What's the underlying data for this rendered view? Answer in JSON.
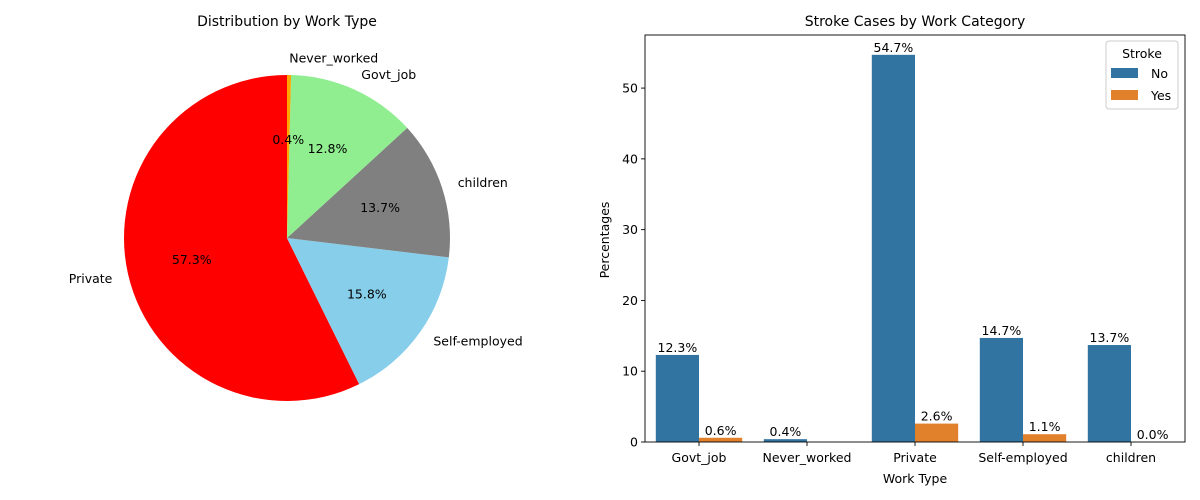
{
  "chart_data": [
    {
      "type": "pie",
      "title": "Distribution by Work Type",
      "categories": [
        "Private",
        "Self-employed",
        "children",
        "Govt_job",
        "Never_worked"
      ],
      "values": [
        57.3,
        15.8,
        13.7,
        12.8,
        0.4
      ],
      "value_labels": [
        "57.3%",
        "15.8%",
        "13.7%",
        "12.8%",
        "0.4%"
      ],
      "colors": [
        "#ff0000",
        "#87ceeb",
        "#808080",
        "#90ee90",
        "#ffa500"
      ],
      "start_angle_deg": 90,
      "direction": "counterclockwise"
    },
    {
      "type": "bar",
      "title": "Stroke Cases by Work Category",
      "xlabel": "Work Type",
      "ylabel": "Percentages",
      "categories": [
        "Govt_job",
        "Never_worked",
        "Private",
        "Self-employed",
        "children"
      ],
      "series": [
        {
          "name": "No",
          "color": "#3274a1",
          "values": [
            12.3,
            0.4,
            54.7,
            14.7,
            13.7
          ],
          "value_labels": [
            "12.3%",
            "0.4%",
            "54.7%",
            "14.7%",
            "13.7%"
          ]
        },
        {
          "name": "Yes",
          "color": "#e1812c",
          "values": [
            0.6,
            null,
            2.6,
            1.1,
            0.0
          ],
          "value_labels": [
            "0.6%",
            "",
            "2.6%",
            "1.1%",
            "0.0%"
          ]
        }
      ],
      "yticks": [
        0,
        10,
        20,
        30,
        40,
        50
      ],
      "ylim": [
        0,
        57.5
      ],
      "legend": {
        "title": "Stroke",
        "position": "top-right"
      },
      "grid": false
    }
  ]
}
